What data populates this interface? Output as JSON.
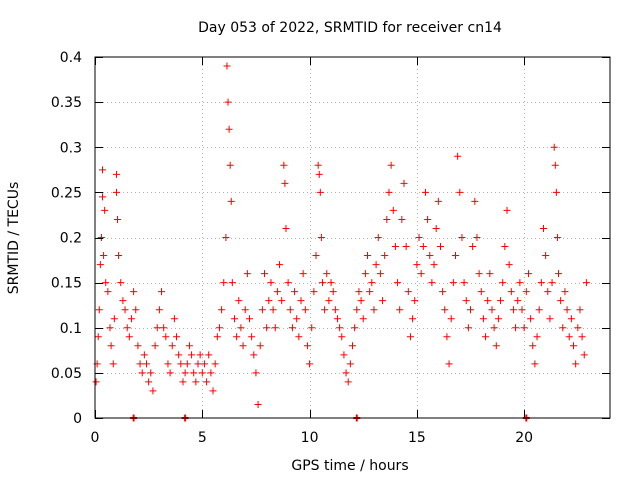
{
  "chart_data": {
    "type": "scatter",
    "title": "Day 053 of 2022, SRMTID for receiver cn14",
    "xlabel": "GPS time / hours",
    "ylabel": "SRMTID / TECUs",
    "xlim": [
      0,
      24
    ],
    "ylim": [
      0,
      0.4
    ],
    "xticks": [
      0,
      5,
      10,
      15,
      20
    ],
    "xtick_labels": [
      "0",
      "5",
      "10",
      "15",
      "20"
    ],
    "yticks": [
      0,
      0.05,
      0.1,
      0.15,
      0.2,
      0.25,
      0.3,
      0.35,
      0.4
    ],
    "ytick_labels": [
      "0",
      "0.05",
      "0.1",
      "0.15",
      "0.2",
      "0.25",
      "0.3",
      "0.35",
      "0.4"
    ],
    "grid": true,
    "marker": "+",
    "colors": {
      "series": "#ff0000",
      "axis": "#000000",
      "grid": "#b0b0b0"
    },
    "series": [
      {
        "name": "SRMTID",
        "points": [
          [
            0.05,
            0.04
          ],
          [
            0.1,
            0.06
          ],
          [
            0.15,
            0.09
          ],
          [
            0.2,
            0.12
          ],
          [
            0.25,
            0.17
          ],
          [
            0.3,
            0.2
          ],
          [
            0.35,
            0.275
          ],
          [
            0.35,
            0.245
          ],
          [
            0.4,
            0.18
          ],
          [
            0.45,
            0.23
          ],
          [
            0.5,
            0.15
          ],
          [
            0.6,
            0.14
          ],
          [
            0.7,
            0.1
          ],
          [
            0.75,
            0.08
          ],
          [
            0.85,
            0.06
          ],
          [
            0.9,
            0.11
          ],
          [
            1.0,
            0.27
          ],
          [
            1.0,
            0.25
          ],
          [
            1.05,
            0.22
          ],
          [
            1.1,
            0.18
          ],
          [
            1.2,
            0.15
          ],
          [
            1.3,
            0.13
          ],
          [
            1.4,
            0.12
          ],
          [
            1.5,
            0.1
          ],
          [
            1.6,
            0.09
          ],
          [
            1.7,
            0.11
          ],
          [
            1.8,
            0.14
          ],
          [
            1.9,
            0.12
          ],
          [
            2.0,
            0.08
          ],
          [
            2.1,
            0.06
          ],
          [
            2.2,
            0.05
          ],
          [
            2.3,
            0.07
          ],
          [
            2.4,
            0.06
          ],
          [
            2.5,
            0.04
          ],
          [
            2.6,
            0.05
          ],
          [
            2.7,
            0.03
          ],
          [
            2.8,
            0.08
          ],
          [
            2.9,
            0.1
          ],
          [
            3.0,
            0.12
          ],
          [
            3.1,
            0.14
          ],
          [
            3.2,
            0.1
          ],
          [
            3.3,
            0.09
          ],
          [
            3.4,
            0.06
          ],
          [
            3.5,
            0.05
          ],
          [
            3.6,
            0.08
          ],
          [
            3.7,
            0.11
          ],
          [
            3.8,
            0.09
          ],
          [
            3.9,
            0.07
          ],
          [
            4.0,
            0.06
          ],
          [
            4.1,
            0.04
          ],
          [
            4.2,
            0.05
          ],
          [
            4.3,
            0.06
          ],
          [
            4.4,
            0.08
          ],
          [
            4.5,
            0.07
          ],
          [
            4.6,
            0.05
          ],
          [
            4.7,
            0.04
          ],
          [
            4.8,
            0.06
          ],
          [
            4.9,
            0.07
          ],
          [
            5.0,
            0.05
          ],
          [
            5.1,
            0.06
          ],
          [
            5.2,
            0.04
          ],
          [
            5.3,
            0.07
          ],
          [
            5.4,
            0.05
          ],
          [
            5.5,
            0.03
          ],
          [
            5.6,
            0.06
          ],
          [
            5.7,
            0.09
          ],
          [
            5.8,
            0.1
          ],
          [
            5.9,
            0.12
          ],
          [
            6.0,
            0.15
          ],
          [
            6.1,
            0.2
          ],
          [
            6.15,
            0.39
          ],
          [
            6.2,
            0.35
          ],
          [
            6.25,
            0.32
          ],
          [
            6.3,
            0.28
          ],
          [
            6.35,
            0.24
          ],
          [
            6.4,
            0.15
          ],
          [
            6.5,
            0.11
          ],
          [
            6.6,
            0.09
          ],
          [
            6.7,
            0.13
          ],
          [
            6.8,
            0.1
          ],
          [
            6.9,
            0.08
          ],
          [
            7.0,
            0.12
          ],
          [
            7.1,
            0.16
          ],
          [
            7.2,
            0.11
          ],
          [
            7.3,
            0.09
          ],
          [
            7.4,
            0.07
          ],
          [
            7.5,
            0.05
          ],
          [
            7.6,
            0.015
          ],
          [
            7.7,
            0.08
          ],
          [
            7.8,
            0.12
          ],
          [
            7.9,
            0.16
          ],
          [
            8.0,
            0.1
          ],
          [
            8.1,
            0.13
          ],
          [
            8.2,
            0.15
          ],
          [
            8.3,
            0.12
          ],
          [
            8.4,
            0.1
          ],
          [
            8.5,
            0.14
          ],
          [
            8.6,
            0.17
          ],
          [
            8.7,
            0.13
          ],
          [
            8.8,
            0.28
          ],
          [
            8.85,
            0.26
          ],
          [
            8.9,
            0.21
          ],
          [
            9.0,
            0.15
          ],
          [
            9.1,
            0.12
          ],
          [
            9.2,
            0.1
          ],
          [
            9.3,
            0.14
          ],
          [
            9.4,
            0.11
          ],
          [
            9.5,
            0.09
          ],
          [
            9.6,
            0.13
          ],
          [
            9.7,
            0.16
          ],
          [
            9.8,
            0.12
          ],
          [
            9.9,
            0.08
          ],
          [
            10.0,
            0.06
          ],
          [
            10.1,
            0.1
          ],
          [
            10.2,
            0.14
          ],
          [
            10.3,
            0.18
          ],
          [
            10.4,
            0.28
          ],
          [
            10.45,
            0.27
          ],
          [
            10.5,
            0.25
          ],
          [
            10.55,
            0.2
          ],
          [
            10.6,
            0.15
          ],
          [
            10.7,
            0.12
          ],
          [
            10.8,
            0.16
          ],
          [
            10.9,
            0.13
          ],
          [
            11.0,
            0.15
          ],
          [
            11.1,
            0.14
          ],
          [
            11.2,
            0.12
          ],
          [
            11.3,
            0.11
          ],
          [
            11.4,
            0.1
          ],
          [
            11.5,
            0.09
          ],
          [
            11.6,
            0.07
          ],
          [
            11.7,
            0.05
          ],
          [
            11.8,
            0.04
          ],
          [
            11.9,
            0.06
          ],
          [
            12.0,
            0.08
          ],
          [
            12.1,
            0.1
          ],
          [
            12.2,
            0.12
          ],
          [
            12.3,
            0.14
          ],
          [
            12.4,
            0.13
          ],
          [
            12.5,
            0.11
          ],
          [
            12.6,
            0.16
          ],
          [
            12.7,
            0.18
          ],
          [
            12.8,
            0.14
          ],
          [
            12.9,
            0.15
          ],
          [
            13.0,
            0.12
          ],
          [
            13.1,
            0.17
          ],
          [
            13.2,
            0.2
          ],
          [
            13.3,
            0.16
          ],
          [
            13.4,
            0.13
          ],
          [
            13.5,
            0.18
          ],
          [
            13.6,
            0.22
          ],
          [
            13.7,
            0.25
          ],
          [
            13.8,
            0.28
          ],
          [
            13.9,
            0.23
          ],
          [
            14.0,
            0.19
          ],
          [
            14.1,
            0.15
          ],
          [
            14.2,
            0.12
          ],
          [
            14.3,
            0.22
          ],
          [
            14.4,
            0.26
          ],
          [
            14.5,
            0.19
          ],
          [
            14.6,
            0.14
          ],
          [
            14.7,
            0.09
          ],
          [
            14.8,
            0.11
          ],
          [
            14.9,
            0.13
          ],
          [
            15.0,
            0.17
          ],
          [
            15.1,
            0.2
          ],
          [
            15.2,
            0.16
          ],
          [
            15.3,
            0.19
          ],
          [
            15.4,
            0.25
          ],
          [
            15.5,
            0.22
          ],
          [
            15.6,
            0.18
          ],
          [
            15.7,
            0.15
          ],
          [
            15.8,
            0.17
          ],
          [
            15.9,
            0.21
          ],
          [
            16.0,
            0.24
          ],
          [
            16.1,
            0.19
          ],
          [
            16.2,
            0.14
          ],
          [
            16.3,
            0.12
          ],
          [
            16.4,
            0.09
          ],
          [
            16.5,
            0.06
          ],
          [
            16.6,
            0.11
          ],
          [
            16.7,
            0.15
          ],
          [
            16.8,
            0.18
          ],
          [
            16.9,
            0.29
          ],
          [
            17.0,
            0.25
          ],
          [
            17.1,
            0.2
          ],
          [
            17.2,
            0.15
          ],
          [
            17.3,
            0.13
          ],
          [
            17.4,
            0.1
          ],
          [
            17.5,
            0.12
          ],
          [
            17.6,
            0.19
          ],
          [
            17.7,
            0.24
          ],
          [
            17.8,
            0.2
          ],
          [
            17.9,
            0.16
          ],
          [
            18.0,
            0.14
          ],
          [
            18.1,
            0.11
          ],
          [
            18.2,
            0.09
          ],
          [
            18.3,
            0.13
          ],
          [
            18.4,
            0.16
          ],
          [
            18.5,
            0.12
          ],
          [
            18.6,
            0.1
          ],
          [
            18.7,
            0.08
          ],
          [
            18.8,
            0.11
          ],
          [
            18.9,
            0.13
          ],
          [
            19.0,
            0.15
          ],
          [
            19.1,
            0.19
          ],
          [
            19.2,
            0.23
          ],
          [
            19.3,
            0.17
          ],
          [
            19.4,
            0.14
          ],
          [
            19.5,
            0.12
          ],
          [
            19.6,
            0.1
          ],
          [
            19.7,
            0.13
          ],
          [
            19.8,
            0.15
          ],
          [
            19.9,
            0.12
          ],
          [
            20.0,
            0.1
          ],
          [
            20.1,
            0.14
          ],
          [
            20.2,
            0.16
          ],
          [
            20.3,
            0.11
          ],
          [
            20.4,
            0.08
          ],
          [
            20.5,
            0.06
          ],
          [
            20.6,
            0.09
          ],
          [
            20.7,
            0.12
          ],
          [
            20.8,
            0.15
          ],
          [
            20.9,
            0.21
          ],
          [
            21.0,
            0.18
          ],
          [
            21.1,
            0.14
          ],
          [
            21.2,
            0.11
          ],
          [
            21.3,
            0.15
          ],
          [
            21.4,
            0.3
          ],
          [
            21.45,
            0.28
          ],
          [
            21.5,
            0.25
          ],
          [
            21.55,
            0.2
          ],
          [
            21.6,
            0.16
          ],
          [
            21.7,
            0.13
          ],
          [
            21.8,
            0.1
          ],
          [
            21.9,
            0.14
          ],
          [
            22.0,
            0.12
          ],
          [
            22.1,
            0.09
          ],
          [
            22.2,
            0.11
          ],
          [
            22.3,
            0.08
          ],
          [
            22.4,
            0.06
          ],
          [
            22.5,
            0.1
          ],
          [
            22.6,
            0.12
          ],
          [
            22.7,
            0.09
          ],
          [
            22.8,
            0.07
          ],
          [
            22.9,
            0.15
          ]
        ],
        "zero_markers": [
          1.8,
          4.2,
          12.2,
          20.1
        ]
      }
    ]
  }
}
